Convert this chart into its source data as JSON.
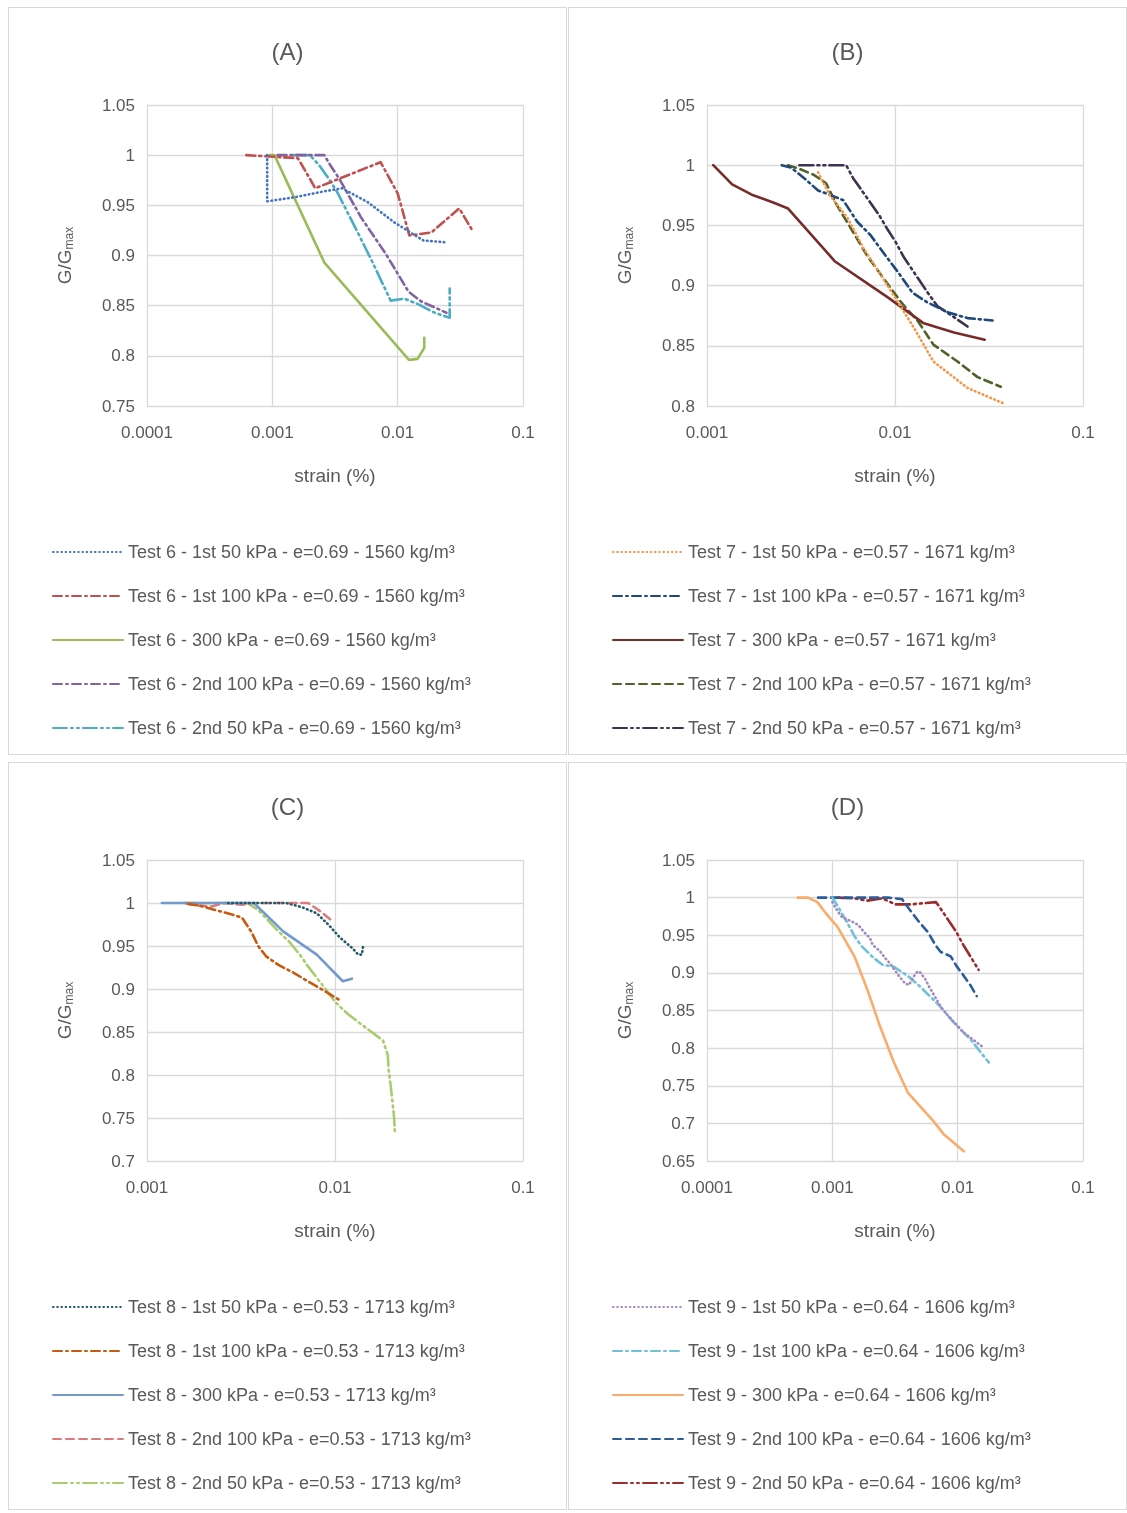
{
  "chart_data": [
    {
      "type": "line",
      "title": "(A)",
      "xlabel": "strain (%)",
      "ylabel": "G/G$_{max}$",
      "log": "x",
      "grid": true,
      "legend": "bottom",
      "marker": "none",
      "xlim": [
        0.0001,
        0.1
      ],
      "xticks": [
        0.0001,
        0.001,
        0.01,
        0.1
      ],
      "ylim": [
        0.75,
        1.05
      ],
      "yticks": [
        0.75,
        0.8,
        0.85,
        0.9,
        0.95,
        1,
        1.05
      ],
      "series": [
        {
          "name": "Test 6 - 1st 50 kPa - e=0.69 - 1560 kg/m³",
          "color": "#4472c4",
          "line_style": "dotted",
          "x": [
            0.00091,
            0.00091,
            0.0015,
            0.0026,
            0.0036,
            0.0058,
            0.0094,
            0.016,
            0.025
          ],
          "values": [
            1,
            0.954,
            0.958,
            0.964,
            0.967,
            0.953,
            0.933,
            0.915,
            0.913
          ]
        },
        {
          "name": "Test 6 - 1st 100 kPa - e=0.69 - 1560 kg/m³",
          "color": "#c0504d",
          "line_style": "dashdot",
          "x": [
            0.00062,
            0.0016,
            0.0019,
            0.0022,
            0.0073,
            0.01,
            0.0124,
            0.0186,
            0.031,
            0.039
          ],
          "values": [
            1,
            0.997,
            0.981,
            0.967,
            0.993,
            0.962,
            0.92,
            0.923,
            0.947,
            0.926
          ]
        },
        {
          "name": "Test 6 - 300 kPa - e=0.69 - 1560 kg/m³",
          "color": "#9bbb59",
          "line_style": "solid",
          "x": [
            0.00095,
            0.00104,
            0.0026,
            0.0123,
            0.0144,
            0.0163,
            0.0163
          ],
          "values": [
            1,
            1,
            0.893,
            0.796,
            0.797,
            0.808,
            0.818
          ]
        },
        {
          "name": "Test 6 - 2nd 100 kPa - e=0.69 - 1560 kg/m³",
          "color": "#8064a2",
          "line_style": "dashdot",
          "x": [
            0.0011,
            0.0026,
            0.0029,
            0.0034,
            0.0051,
            0.0081,
            0.0122,
            0.0155,
            0.0245
          ],
          "values": [
            1,
            1,
            0.99,
            0.977,
            0.938,
            0.901,
            0.864,
            0.854,
            0.843
          ]
        },
        {
          "name": "Test 6 - 2nd 50 kPa - e=0.69 - 1560 kg/m³",
          "color": "#4bacc6",
          "line_style": "longdashdotdot",
          "x": [
            0.0015,
            0.002,
            0.0024,
            0.0028,
            0.0033,
            0.0048,
            0.0062,
            0.0088,
            0.0113,
            0.0148,
            0.0197,
            0.026,
            0.026,
            0.026
          ],
          "values": [
            1,
            1,
            0.989,
            0.977,
            0.963,
            0.923,
            0.895,
            0.855,
            0.857,
            0.851,
            0.843,
            0.838,
            0.851,
            0.867
          ]
        }
      ]
    },
    {
      "type": "line",
      "title": "(B)",
      "xlabel": "strain (%)",
      "ylabel": "G/G$_{max}$",
      "log": "x",
      "grid": true,
      "legend": "bottom",
      "marker": "none",
      "xlim": [
        0.001,
        0.1
      ],
      "xticks": [
        0.001,
        0.01,
        0.1
      ],
      "ylim": [
        0.8,
        1.05
      ],
      "yticks": [
        0.8,
        0.85,
        0.9,
        0.95,
        1,
        1.05
      ],
      "series": [
        {
          "name": "Test 7 - 1st 50 kPa - e=0.57 - 1671 kg/m³",
          "color": "#f79646",
          "line_style": "dotted",
          "x": [
            0.0039,
            0.0045,
            0.0056,
            0.0068,
            0.0084,
            0.0104,
            0.0126,
            0.016,
            0.0243,
            0.038
          ],
          "values": [
            0.994,
            0.975,
            0.956,
            0.931,
            0.909,
            0.886,
            0.865,
            0.837,
            0.815,
            0.802
          ]
        },
        {
          "name": "Test 7 - 1st 100 kPa - e=0.57 - 1671 kg/m³",
          "color": "#1f497d",
          "line_style": "dashdot",
          "x": [
            0.0025,
            0.0028,
            0.0033,
            0.0039,
            0.0044,
            0.0053,
            0.0063,
            0.0074,
            0.0089,
            0.0104,
            0.0124,
            0.0149,
            0.019,
            0.0243,
            0.033
          ],
          "values": [
            1,
            0.998,
            0.989,
            0.979,
            0.976,
            0.971,
            0.953,
            0.942,
            0.925,
            0.911,
            0.894,
            0.886,
            0.878,
            0.873,
            0.871
          ]
        },
        {
          "name": "Test 7 - 300 kPa - e=0.57 - 1671 kg/m³",
          "color": "#772c2a",
          "line_style": "solid",
          "x": [
            0.00108,
            0.00136,
            0.00176,
            0.00225,
            0.0027,
            0.0048,
            0.0092,
            0.0141,
            0.0206,
            0.03
          ],
          "values": [
            1,
            0.984,
            0.975,
            0.969,
            0.964,
            0.92,
            0.89,
            0.869,
            0.861,
            0.855
          ]
        },
        {
          "name": "Test 7 - 2nd 100 kPa - e=0.57 - 1671 kg/m³",
          "color": "#4f6228",
          "line_style": "dashed",
          "x": [
            0.0027,
            0.0031,
            0.0037,
            0.0043,
            0.0049,
            0.0058,
            0.0071,
            0.0087,
            0.0108,
            0.0133,
            0.016,
            0.0215,
            0.0275,
            0.0365
          ],
          "values": [
            1,
            0.997,
            0.992,
            0.985,
            0.967,
            0.948,
            0.925,
            0.906,
            0.886,
            0.87,
            0.851,
            0.837,
            0.824,
            0.816
          ]
        },
        {
          "name": "Test 7 - 2nd 50 kPa - e=0.57 - 1671 kg/m³",
          "color": "#3f3151",
          "line_style": "longdashdotdot",
          "x": [
            0.0031,
            0.0045,
            0.0055,
            0.006,
            0.0068,
            0.0082,
            0.0091,
            0.0101,
            0.0111,
            0.0134,
            0.0151,
            0.0168,
            0.0205,
            0.0243
          ],
          "values": [
            1,
            1,
            1,
            0.989,
            0.977,
            0.959,
            0.947,
            0.936,
            0.924,
            0.905,
            0.893,
            0.883,
            0.874,
            0.866
          ]
        }
      ]
    },
    {
      "type": "line",
      "title": "(C)",
      "xlabel": "strain (%)",
      "ylabel": "G/G$_{max}$",
      "log": "x",
      "grid": true,
      "legend": "bottom",
      "marker": "none",
      "xlim": [
        0.001,
        0.1
      ],
      "xticks": [
        0.001,
        0.01,
        0.1
      ],
      "ylim": [
        0.7,
        1.05
      ],
      "yticks": [
        0.7,
        0.75,
        0.8,
        0.85,
        0.9,
        0.95,
        1,
        1.05
      ],
      "series": [
        {
          "name": "Test 8 - 1st 50 kPa - e=0.53 - 1713 kg/m³",
          "color": "#215968",
          "line_style": "dotted",
          "x": [
            0.0027,
            0.004,
            0.0055,
            0.0067,
            0.008,
            0.0093,
            0.0106,
            0.0123,
            0.0133,
            0.0139,
            0.0141
          ],
          "values": [
            1,
            1,
            1,
            0.995,
            0.988,
            0.974,
            0.96,
            0.948,
            0.94,
            0.94,
            0.949
          ]
        },
        {
          "name": "Test 8 - 1st 100 kPa - e=0.53 - 1713 kg/m³",
          "color": "#c55a11",
          "line_style": "dashdot",
          "x": [
            0.00165,
            0.0019,
            0.0023,
            0.0028,
            0.0032,
            0.0036,
            0.0039,
            0.0043,
            0.005,
            0.006,
            0.0068,
            0.008,
            0.0108
          ],
          "values": [
            0.999,
            0.997,
            0.992,
            0.987,
            0.983,
            0.966,
            0.95,
            0.938,
            0.928,
            0.919,
            0.912,
            0.903,
            0.886
          ]
        },
        {
          "name": "Test 8 - 300 kPa - e=0.53 - 1713 kg/m³",
          "color": "#729aca",
          "line_style": "solid",
          "x": [
            0.0012,
            0.0037,
            0.0053,
            0.008,
            0.011,
            0.0123
          ],
          "values": [
            1,
            1,
            0.967,
            0.94,
            0.909,
            0.912
          ]
        },
        {
          "name": "Test 8 - 2nd 100 kPa - e=0.53 - 1713 kg/m³",
          "color": "#db7b7b",
          "line_style": "dashed",
          "x": [
            0.0016,
            0.0019,
            0.0022,
            0.0026,
            0.0032,
            0.0037,
            0.0072,
            0.0084,
            0.0097
          ],
          "values": [
            1,
            0.997,
            0.996,
            1,
            0.998,
            1,
            1,
            0.99,
            0.979
          ]
        },
        {
          "name": "Test 8 - 2nd 50 kPa - e=0.53 - 1713 kg/m³",
          "color": "#a9cc6e",
          "line_style": "longdashdotdot",
          "x": [
            0.00157,
            0.0034,
            0.0039,
            0.005,
            0.0057,
            0.0065,
            0.0072,
            0.0089,
            0.0101,
            0.0117,
            0.0134,
            0.018,
            0.0191,
            0.0193,
            0.0198,
            0.0206,
            0.0208
          ],
          "values": [
            1,
            1,
            0.992,
            0.967,
            0.955,
            0.94,
            0.926,
            0.9,
            0.884,
            0.871,
            0.861,
            0.84,
            0.823,
            0.805,
            0.787,
            0.752,
            0.735
          ]
        }
      ]
    },
    {
      "type": "line",
      "title": "(D)",
      "xlabel": "strain (%)",
      "ylabel": "G/G$_{max}$",
      "log": "x",
      "grid": true,
      "legend": "bottom",
      "marker": "none",
      "xlim": [
        0.0001,
        0.1
      ],
      "xticks": [
        0.0001,
        0.001,
        0.01,
        0.1
      ],
      "ylim": [
        0.65,
        1.05
      ],
      "yticks": [
        0.65,
        0.7,
        0.75,
        0.8,
        0.85,
        0.9,
        0.95,
        1,
        1.05
      ],
      "series": [
        {
          "name": "Test 9 - 1st 50 kPa - e=0.64 - 1606 kg/m³",
          "color": "#a389c4",
          "line_style": "dotted",
          "x": [
            0.001,
            0.0011,
            0.0012,
            0.0014,
            0.0016,
            0.0018,
            0.002,
            0.0021,
            0.0024,
            0.0026,
            0.0029,
            0.0034,
            0.0038,
            0.0041,
            0.0044,
            0.0048,
            0.005,
            0.0055,
            0.0059,
            0.0064,
            0.0074,
            0.0082,
            0.0111,
            0.0141,
            0.016
          ],
          "values": [
            0.994,
            0.982,
            0.974,
            0.969,
            0.964,
            0.954,
            0.946,
            0.937,
            0.929,
            0.921,
            0.912,
            0.896,
            0.886,
            0.884,
            0.894,
            0.902,
            0.901,
            0.892,
            0.882,
            0.872,
            0.854,
            0.845,
            0.821,
            0.808,
            0.801
          ]
        },
        {
          "name": "Test 9 - 1st 100 kPa - e=0.64 - 1606 kg/m³",
          "color": "#6ec1d9",
          "line_style": "dashdot",
          "x": [
            0.001,
            0.0011,
            0.0013,
            0.0015,
            0.0017,
            0.0021,
            0.0025,
            0.0031,
            0.004,
            0.005,
            0.006,
            0.0071,
            0.0091,
            0.0105,
            0.0126,
            0.0177
          ],
          "values": [
            1,
            0.989,
            0.968,
            0.949,
            0.936,
            0.921,
            0.911,
            0.908,
            0.896,
            0.882,
            0.869,
            0.857,
            0.836,
            0.825,
            0.812,
            0.781
          ]
        },
        {
          "name": "Test 9 - 300 kPa - e=0.64 - 1606 kg/m³",
          "color": "#fbac6b",
          "line_style": "solid",
          "x": [
            0.00053,
            0.00064,
            0.00076,
            0.0009,
            0.0011,
            0.0015,
            0.0019,
            0.0024,
            0.0031,
            0.004,
            0.005,
            0.0064,
            0.0077,
            0.0112
          ],
          "values": [
            1,
            1,
            0.994,
            0.978,
            0.961,
            0.922,
            0.878,
            0.829,
            0.781,
            0.741,
            0.723,
            0.703,
            0.686,
            0.663
          ]
        },
        {
          "name": "Test 9 - 2nd 100 kPa - e=0.64 - 1606 kg/m³",
          "color": "#2c5d9a",
          "line_style": "dashed",
          "x": [
            0.00077,
            0.001,
            0.0021,
            0.0028,
            0.0036,
            0.0041,
            0.0049,
            0.0058,
            0.0067,
            0.0073,
            0.0088,
            0.0098,
            0.0112,
            0.0127,
            0.0142
          ],
          "values": [
            1,
            1,
            1,
            1,
            0.998,
            0.985,
            0.968,
            0.954,
            0.936,
            0.928,
            0.922,
            0.909,
            0.896,
            0.883,
            0.869
          ]
        },
        {
          "name": "Test 9 - 2nd 50 kPa - e=0.64 - 1606 kg/m³",
          "color": "#9b2d2f",
          "line_style": "longdashdotdot",
          "x": [
            0.0011,
            0.0015,
            0.0019,
            0.0025,
            0.0032,
            0.0042,
            0.0067,
            0.007,
            0.0082,
            0.0097,
            0.0112,
            0.0147
          ],
          "values": [
            1,
            0.999,
            0.996,
            0.999,
            0.991,
            0.991,
            0.994,
            0.99,
            0.973,
            0.955,
            0.936,
            0.904
          ]
        }
      ]
    }
  ]
}
